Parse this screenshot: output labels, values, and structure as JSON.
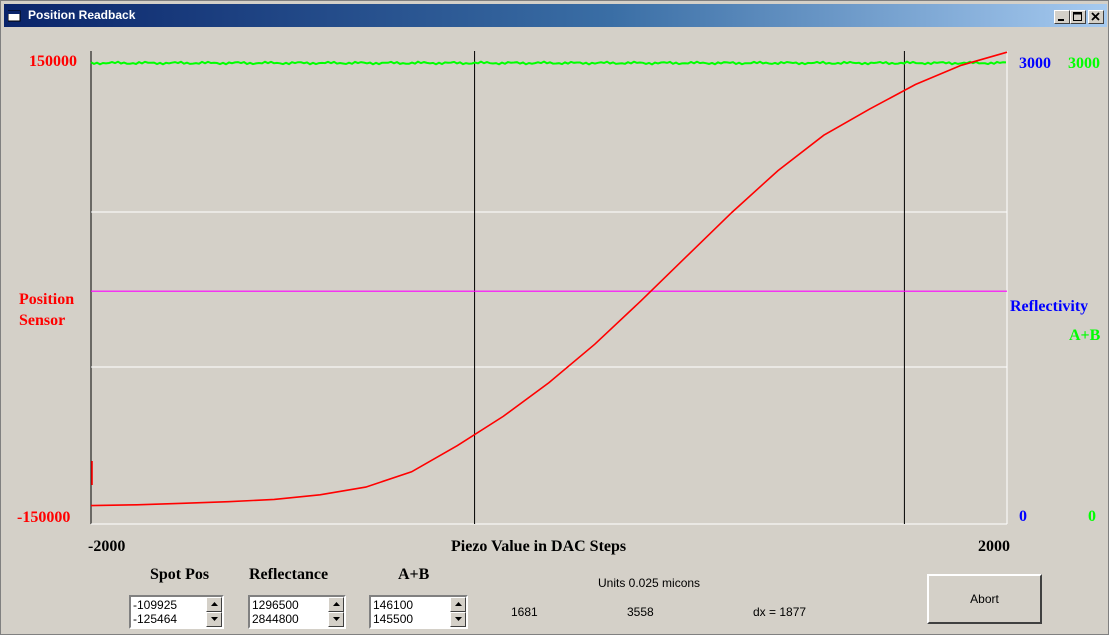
{
  "window": {
    "title": "Position Readback",
    "controls": [
      "minimize",
      "maximize",
      "close"
    ]
  },
  "chart_data": {
    "type": "line",
    "title": "",
    "xlabel": "Piezo Value in DAC Steps",
    "xlim": [
      -2000,
      2000
    ],
    "x_tick_labels": [
      "-2000",
      "2000"
    ],
    "left_axis": {
      "label_line1": "Position",
      "label_line2": "Sensor",
      "top": "150000",
      "bottom": "-150000",
      "color": "#ff0000"
    },
    "right_axis_reflectivity": {
      "label": "Reflectivity",
      "top": "3000",
      "bottom": "0",
      "color": "#0000ff"
    },
    "right_axis_ab": {
      "label": "A+B",
      "top": "3000",
      "bottom": "0",
      "color": "#00ff00"
    },
    "vertical_markers_x": [
      -325,
      1552
    ],
    "grid": "horizontal lines at 1/3 and 2/3",
    "series": [
      {
        "axis": "left",
        "color": "#ff0000",
        "x": [
          -2000,
          -1800,
          -1600,
          -1400,
          -1200,
          -1000,
          -800,
          -600,
          -400,
          -200,
          0,
          200,
          400,
          600,
          800,
          1000,
          1200,
          1400,
          1600,
          1800,
          2000
        ],
        "y": [
          -138000,
          -137500,
          -136500,
          -135500,
          -134000,
          -131000,
          -126000,
          -116000,
          -99000,
          -80000,
          -58000,
          -33000,
          -5000,
          24000,
          53000,
          80000,
          103000,
          120000,
          136000,
          148500,
          157000
        ]
      },
      {
        "axis": "left",
        "color": "#ff00ff",
        "x": [
          -2000,
          2000
        ],
        "y": [
          1500,
          1500
        ]
      },
      {
        "axis": "right",
        "color": "#00ff00",
        "x": [
          -2000,
          2000
        ],
        "y": [
          3000,
          3000
        ]
      }
    ]
  },
  "controls": {
    "spot_pos": {
      "label": "Spot Pos",
      "value1": "-109925",
      "value2": "-125464"
    },
    "reflectance": {
      "label": "Reflectance",
      "value1": "1296500",
      "value2": "2844800"
    },
    "ab": {
      "label": "A+B",
      "value1": "146100",
      "value2": "145500"
    },
    "units": "Units 0.025 micons",
    "marker1": "1681",
    "marker2": "3558",
    "dx": "dx = 1877",
    "abort_label": "Abort"
  }
}
